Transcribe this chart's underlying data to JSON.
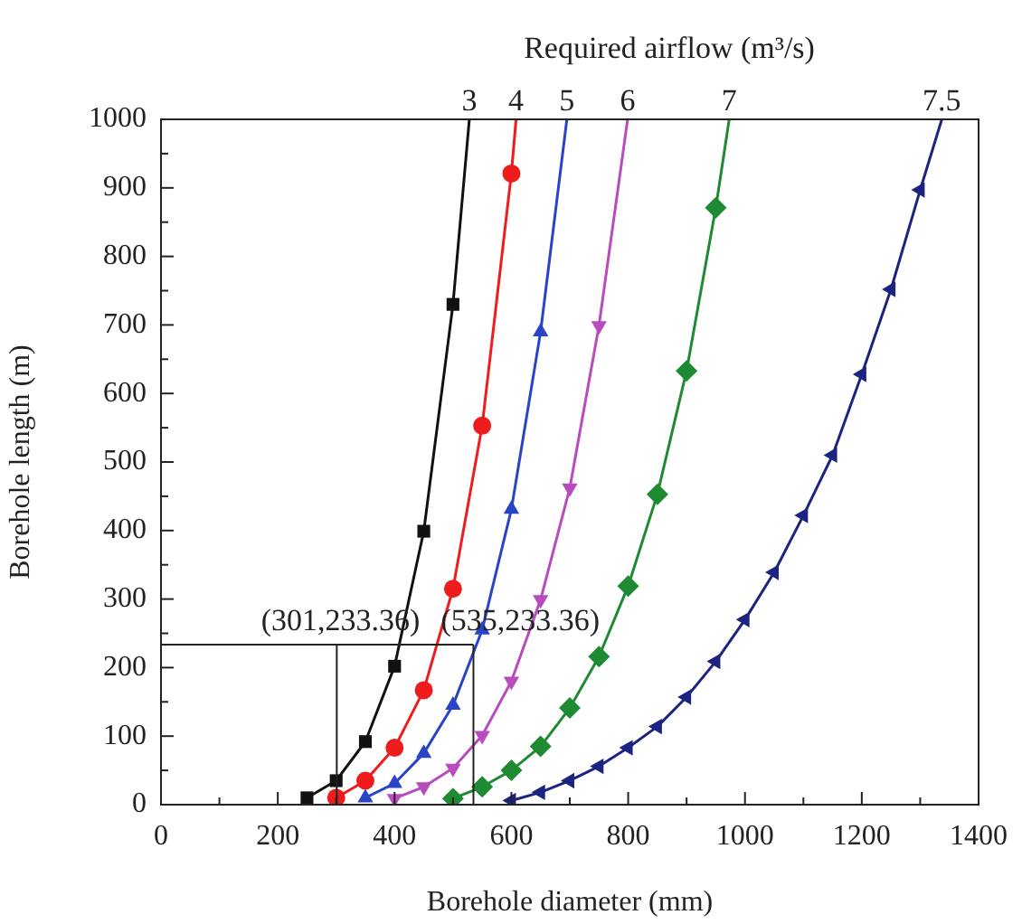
{
  "chart_data": {
    "type": "line",
    "xlabel": "Borehole diameter (mm)",
    "ylabel": "Borehole length (m)",
    "legend_title": "Required airflow (m³/s)",
    "xlim": [
      0,
      1400
    ],
    "ylim": [
      0,
      1000
    ],
    "xticks": [
      0,
      {
        "value": 100,
        "label": null
      },
      200,
      {
        "value": 300,
        "label": null
      },
      400,
      {
        "value": 500,
        "label": null
      },
      600,
      {
        "value": 700,
        "label": null
      },
      800,
      {
        "value": 900,
        "label": null
      },
      1000,
      {
        "value": 1100,
        "label": null
      },
      1200,
      {
        "value": 1300,
        "label": null
      },
      1400
    ],
    "yticks": [
      0,
      {
        "value": 50,
        "label": null
      },
      100,
      {
        "value": 150,
        "label": null
      },
      200,
      {
        "value": 250,
        "label": null
      },
      300,
      {
        "value": 350,
        "label": null
      },
      400,
      {
        "value": 450,
        "label": null
      },
      500,
      {
        "value": 550,
        "label": null
      },
      600,
      {
        "value": 650,
        "label": null
      },
      700,
      {
        "value": 750,
        "label": null
      },
      800,
      {
        "value": 850,
        "label": null
      },
      900,
      {
        "value": 950,
        "label": null
      },
      1000
    ],
    "grid": false,
    "line_style": "solid",
    "series": [
      {
        "name": "3",
        "color": "#111111",
        "marker": "square",
        "x": [
          250,
          300,
          350,
          400,
          450,
          500,
          528
        ],
        "values": [
          10,
          35,
          92,
          202,
          399,
          730,
          1000
        ]
      },
      {
        "name": "4",
        "color": "#ee1c1c",
        "marker": "circle",
        "x": [
          300,
          350,
          400,
          450,
          500,
          550,
          600,
          608
        ],
        "values": [
          10,
          35,
          83,
          167,
          315,
          553,
          921,
          1000
        ]
      },
      {
        "name": "5",
        "color": "#2a44c8",
        "marker": "triangle",
        "x": [
          350,
          400,
          450,
          500,
          550,
          600,
          650,
          695
        ],
        "values": [
          10,
          31,
          75,
          145,
          255,
          431,
          690,
          1000
        ]
      },
      {
        "name": "6",
        "color": "#b84bbd",
        "marker": "triangle-down",
        "x": [
          400,
          450,
          500,
          550,
          600,
          650,
          700,
          750,
          799
        ],
        "values": [
          9,
          26,
          53,
          101,
          180,
          299,
          462,
          699,
          1000
        ]
      },
      {
        "name": "7",
        "color": "#1e8a32",
        "marker": "diamond",
        "x": [
          500,
          550,
          600,
          650,
          700,
          750,
          800,
          850,
          900,
          950,
          973
        ],
        "values": [
          9,
          26,
          50,
          85,
          141,
          216,
          319,
          453,
          633,
          871,
          1000
        ]
      },
      {
        "name": "7.5",
        "color": "#1c2380",
        "marker": "triangle-left",
        "x": [
          600,
          650,
          700,
          750,
          800,
          850,
          900,
          950,
          1000,
          1050,
          1100,
          1150,
          1200,
          1250,
          1300,
          1337
        ],
        "values": [
          6,
          18,
          35,
          56,
          83,
          114,
          157,
          209,
          270,
          339,
          422,
          510,
          628,
          752,
          897,
          1000
        ]
      }
    ],
    "ref_lines": [
      {
        "axis": "y",
        "value": 233.36
      },
      {
        "axis": "x",
        "value": 301
      },
      {
        "axis": "x",
        "value": 535
      }
    ],
    "annotations": [
      "(301,233.36)",
      "(535,233.36)"
    ]
  }
}
